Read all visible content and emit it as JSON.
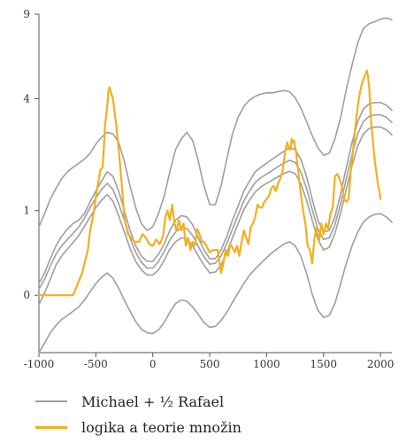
{
  "chart_data": {
    "type": "line",
    "title": "",
    "xlabel": "",
    "ylabel": "",
    "x_ticks": [
      -1000,
      -500,
      0,
      500,
      1000,
      1500,
      2000
    ],
    "x_tick_labels": [
      "-1000",
      "-500",
      "0",
      "500",
      "1000",
      "1500",
      "2000"
    ],
    "y_scale": "log1p",
    "y_ticks": [
      0,
      1,
      4,
      9
    ],
    "y_tick_labels": [
      "0",
      "1",
      "4",
      "9"
    ],
    "xlim": [
      -1000,
      2100
    ],
    "ylim": [
      -0.6,
      9
    ],
    "legend": [
      "Michael + ½ Rafael",
      "logika a teorie množin"
    ],
    "colors": {
      "band": "#9e9e9e",
      "highlight": "#f2b01e",
      "axis": "#555555"
    },
    "series": [
      {
        "name": "Michael + ½ Rafael",
        "role": "upper-2",
        "color": "#9e9e9e",
        "x": [
          -1000,
          -950,
          -900,
          -850,
          -800,
          -750,
          -700,
          -650,
          -600,
          -550,
          -500,
          -450,
          -400,
          -350,
          -300,
          -250,
          -200,
          -150,
          -100,
          -50,
          0,
          50,
          100,
          150,
          200,
          250,
          300,
          350,
          400,
          450,
          500,
          550,
          600,
          650,
          700,
          750,
          800,
          850,
          900,
          950,
          1000,
          1050,
          1100,
          1150,
          1200,
          1250,
          1300,
          1350,
          1400,
          1450,
          1500,
          1550,
          1600,
          1650,
          1700,
          1750,
          1800,
          1850,
          1900,
          1950,
          2000,
          2050,
          2100
        ],
        "y": [
          0.75,
          0.95,
          1.2,
          1.4,
          1.6,
          1.75,
          1.85,
          1.95,
          2.05,
          2.2,
          2.45,
          2.65,
          2.8,
          2.75,
          2.5,
          2.0,
          1.45,
          1.05,
          0.8,
          0.7,
          0.75,
          0.95,
          1.25,
          1.75,
          2.3,
          2.6,
          2.8,
          2.55,
          2.0,
          1.45,
          1.1,
          1.1,
          1.45,
          2.05,
          2.75,
          3.3,
          3.7,
          3.95,
          4.1,
          4.2,
          4.25,
          4.25,
          4.3,
          4.35,
          4.3,
          4.05,
          3.65,
          3.15,
          2.7,
          2.35,
          2.15,
          2.2,
          2.6,
          3.3,
          4.4,
          5.6,
          6.9,
          7.9,
          8.25,
          8.4,
          8.6,
          8.7,
          8.55
        ]
      },
      {
        "name": "Michael + ½ Rafael",
        "role": "upper-1",
        "color": "#9e9e9e",
        "x": [
          -1000,
          -950,
          -900,
          -850,
          -800,
          -750,
          -700,
          -650,
          -600,
          -550,
          -500,
          -450,
          -400,
          -350,
          -300,
          -250,
          -200,
          -150,
          -100,
          -50,
          0,
          50,
          100,
          150,
          200,
          250,
          300,
          350,
          400,
          450,
          500,
          550,
          600,
          650,
          700,
          750,
          800,
          850,
          900,
          950,
          1000,
          1050,
          1100,
          1150,
          1200,
          1250,
          1300,
          1350,
          1400,
          1450,
          1500,
          1550,
          1600,
          1650,
          1700,
          1750,
          1800,
          1850,
          1900,
          1950,
          2000,
          2050,
          2100
        ],
        "y": [
          0.1,
          0.2,
          0.35,
          0.5,
          0.62,
          0.72,
          0.8,
          0.85,
          0.95,
          1.15,
          1.35,
          1.55,
          1.75,
          1.65,
          1.35,
          1.0,
          0.7,
          0.5,
          0.38,
          0.32,
          0.32,
          0.4,
          0.52,
          0.7,
          0.85,
          0.92,
          0.9,
          0.78,
          0.6,
          0.45,
          0.35,
          0.35,
          0.45,
          0.62,
          0.85,
          1.08,
          1.35,
          1.55,
          1.75,
          1.85,
          1.95,
          2.05,
          2.15,
          2.25,
          2.35,
          2.3,
          2.05,
          1.65,
          1.2,
          0.85,
          0.68,
          0.7,
          0.9,
          1.3,
          1.85,
          2.5,
          3.15,
          3.6,
          3.8,
          3.85,
          3.85,
          3.75,
          3.55
        ]
      },
      {
        "name": "Michael + ½ Rafael",
        "role": "median",
        "color": "#9e9e9e",
        "x": [
          -1000,
          -950,
          -900,
          -850,
          -800,
          -750,
          -700,
          -650,
          -600,
          -550,
          -500,
          -450,
          -400,
          -350,
          -300,
          -250,
          -200,
          -150,
          -100,
          -50,
          0,
          50,
          100,
          150,
          200,
          250,
          300,
          350,
          400,
          450,
          500,
          550,
          600,
          650,
          700,
          750,
          800,
          850,
          900,
          950,
          1000,
          1050,
          1100,
          1150,
          1200,
          1250,
          1300,
          1350,
          1400,
          1450,
          1500,
          1550,
          1600,
          1650,
          1700,
          1750,
          1800,
          1850,
          1900,
          1950,
          2000,
          2050,
          2100
        ],
        "y": [
          0.05,
          0.14,
          0.27,
          0.4,
          0.5,
          0.58,
          0.66,
          0.75,
          0.88,
          1.05,
          1.22,
          1.38,
          1.5,
          1.38,
          1.12,
          0.85,
          0.6,
          0.42,
          0.31,
          0.25,
          0.25,
          0.32,
          0.43,
          0.57,
          0.68,
          0.74,
          0.73,
          0.63,
          0.49,
          0.37,
          0.29,
          0.3,
          0.38,
          0.53,
          0.72,
          0.93,
          1.17,
          1.35,
          1.52,
          1.62,
          1.7,
          1.78,
          1.87,
          1.95,
          2.02,
          1.97,
          1.75,
          1.4,
          1.02,
          0.72,
          0.58,
          0.6,
          0.78,
          1.12,
          1.6,
          2.18,
          2.75,
          3.15,
          3.33,
          3.38,
          3.38,
          3.3,
          3.12
        ]
      },
      {
        "name": "Michael + ½ Rafael",
        "role": "lower-1",
        "color": "#9e9e9e",
        "x": [
          -1000,
          -950,
          -900,
          -850,
          -800,
          -750,
          -700,
          -650,
          -600,
          -550,
          -500,
          -450,
          -400,
          -350,
          -300,
          -250,
          -200,
          -150,
          -100,
          -50,
          0,
          50,
          100,
          150,
          200,
          250,
          300,
          350,
          400,
          450,
          500,
          550,
          600,
          650,
          700,
          750,
          800,
          850,
          900,
          950,
          1000,
          1050,
          1100,
          1150,
          1200,
          1250,
          1300,
          1350,
          1400,
          1450,
          1500,
          1550,
          1600,
          1650,
          1700,
          1750,
          1800,
          1850,
          1900,
          1950,
          2000,
          2050,
          2100
        ],
        "y": [
          -0.08,
          0.02,
          0.14,
          0.28,
          0.38,
          0.46,
          0.54,
          0.63,
          0.76,
          0.9,
          1.05,
          1.18,
          1.28,
          1.16,
          0.92,
          0.68,
          0.47,
          0.32,
          0.23,
          0.18,
          0.18,
          0.23,
          0.33,
          0.46,
          0.55,
          0.6,
          0.59,
          0.5,
          0.38,
          0.28,
          0.2,
          0.21,
          0.28,
          0.42,
          0.6,
          0.8,
          1.02,
          1.18,
          1.33,
          1.43,
          1.5,
          1.57,
          1.64,
          1.71,
          1.76,
          1.71,
          1.5,
          1.18,
          0.85,
          0.58,
          0.45,
          0.48,
          0.66,
          0.96,
          1.38,
          1.9,
          2.4,
          2.75,
          2.92,
          2.97,
          2.97,
          2.88,
          2.72
        ]
      },
      {
        "name": "Michael + ½ Rafael",
        "role": "lower-2",
        "color": "#9e9e9e",
        "x": [
          -1000,
          -950,
          -900,
          -850,
          -800,
          -750,
          -700,
          -650,
          -600,
          -550,
          -500,
          -450,
          -400,
          -350,
          -300,
          -250,
          -200,
          -150,
          -100,
          -50,
          0,
          50,
          100,
          150,
          200,
          250,
          300,
          350,
          400,
          450,
          500,
          550,
          600,
          650,
          700,
          750,
          800,
          850,
          900,
          950,
          1000,
          1050,
          1100,
          1150,
          1200,
          1250,
          1300,
          1350,
          1400,
          1450,
          1500,
          1550,
          1600,
          1650,
          1700,
          1750,
          1800,
          1850,
          1900,
          1950,
          2000,
          2050,
          2100
        ],
        "y": [
          -0.6,
          -0.48,
          -0.36,
          -0.28,
          -0.22,
          -0.18,
          -0.14,
          -0.1,
          -0.04,
          0.03,
          0.1,
          0.16,
          0.2,
          0.15,
          0.06,
          -0.04,
          -0.14,
          -0.24,
          -0.32,
          -0.36,
          -0.37,
          -0.33,
          -0.25,
          -0.15,
          -0.07,
          -0.04,
          -0.05,
          -0.1,
          -0.17,
          -0.25,
          -0.3,
          -0.29,
          -0.23,
          -0.15,
          -0.06,
          0.02,
          0.1,
          0.18,
          0.24,
          0.3,
          0.36,
          0.42,
          0.47,
          0.52,
          0.55,
          0.5,
          0.38,
          0.2,
          0.01,
          -0.13,
          -0.2,
          -0.18,
          -0.07,
          0.1,
          0.3,
          0.5,
          0.68,
          0.82,
          0.9,
          0.94,
          0.95,
          0.9,
          0.82
        ]
      },
      {
        "name": "logika a teorie množin",
        "role": "highlight",
        "color": "#f2b01e",
        "x": [
          -1000,
          -700,
          -650,
          -620,
          -600,
          -570,
          -550,
          -520,
          -500,
          -480,
          -460,
          -440,
          -420,
          -400,
          -390,
          -380,
          -370,
          -350,
          -320,
          -290,
          -270,
          -250,
          -220,
          -200,
          -160,
          -120,
          -90,
          -60,
          -30,
          0,
          30,
          60,
          90,
          110,
          130,
          150,
          170,
          190,
          210,
          230,
          250,
          270,
          290,
          310,
          330,
          350,
          370,
          390,
          410,
          430,
          450,
          470,
          500,
          530,
          570,
          600,
          620,
          640,
          660,
          680,
          700,
          720,
          740,
          760,
          780,
          800,
          820,
          840,
          860,
          880,
          900,
          920,
          940,
          960,
          980,
          1000,
          1020,
          1040,
          1060,
          1080,
          1100,
          1120,
          1140,
          1160,
          1180,
          1200,
          1210,
          1220,
          1230,
          1240,
          1260,
          1280,
          1300,
          1320,
          1340,
          1360,
          1380,
          1400,
          1420,
          1440,
          1460,
          1480,
          1500,
          1520,
          1540,
          1560,
          1580,
          1600,
          1620,
          1640,
          1660,
          1680,
          1700,
          1720,
          1740,
          1760,
          1780,
          1800,
          1820,
          1840,
          1860,
          1880,
          1890,
          1900,
          1910,
          1920,
          1930,
          1940,
          1950,
          1960,
          1970,
          1980,
          1990,
          2000
        ],
        "y": [
          0,
          0,
          0.12,
          0.2,
          0.3,
          0.45,
          0.7,
          0.95,
          1.25,
          1.5,
          1.8,
          1.85,
          3.0,
          3.7,
          4.3,
          4.5,
          4.3,
          4.0,
          3.0,
          2.0,
          1.4,
          0.9,
          0.65,
          0.62,
          0.55,
          0.55,
          0.65,
          0.6,
          0.52,
          0.5,
          0.58,
          0.52,
          0.62,
          0.9,
          1.0,
          0.85,
          1.1,
          0.8,
          0.7,
          0.85,
          0.7,
          0.8,
          0.5,
          0.6,
          0.45,
          0.55,
          0.5,
          0.72,
          0.65,
          0.55,
          0.55,
          0.5,
          0.42,
          0.45,
          0.45,
          0.2,
          0.3,
          0.45,
          0.38,
          0.52,
          0.48,
          0.42,
          0.5,
          0.38,
          0.55,
          0.7,
          0.6,
          0.52,
          0.75,
          0.8,
          0.9,
          1.1,
          1.05,
          1.05,
          1.15,
          1.2,
          1.25,
          1.4,
          1.45,
          1.35,
          1.5,
          1.6,
          1.75,
          2.2,
          2.5,
          2.3,
          2.3,
          2.6,
          2.5,
          2.55,
          2.2,
          1.7,
          1.3,
          1.0,
          0.8,
          0.5,
          0.45,
          0.3,
          0.6,
          0.75,
          0.55,
          0.8,
          0.65,
          0.8,
          0.72,
          0.95,
          1.05,
          1.65,
          1.7,
          1.6,
          1.45,
          1.2,
          1.15,
          1.2,
          1.8,
          2.3,
          3.0,
          3.7,
          4.3,
          4.7,
          5.0,
          5.3,
          5.0,
          4.5,
          3.7,
          3.0,
          2.7,
          2.3,
          2.0,
          1.8,
          1.6,
          1.45,
          1.35,
          1.2
        ]
      }
    ]
  }
}
